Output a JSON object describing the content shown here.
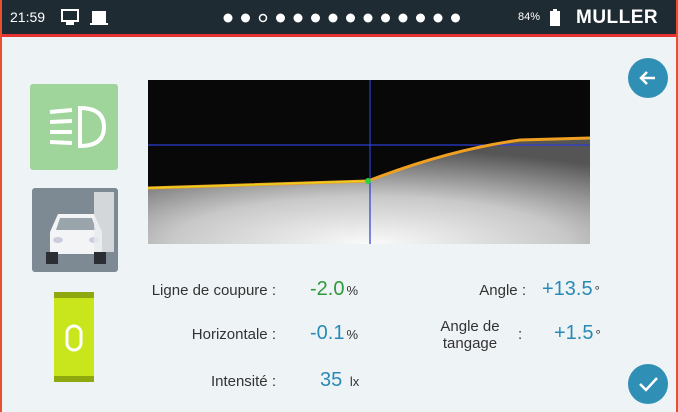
{
  "status_bar": {
    "time": "21:59",
    "battery": "84%",
    "brand": "MULLER"
  },
  "measurements": {
    "ligne_de_coupure": {
      "label": "Ligne de coupure",
      "separator": ":",
      "value": "-2.0",
      "unit": "%"
    },
    "horizontale": {
      "label": "Horizontale",
      "separator": ":",
      "value": "-0.1",
      "unit": "%"
    },
    "intensite": {
      "label": "Intensité",
      "separator": ":",
      "value": "35",
      "unit": "lx"
    },
    "angle": {
      "label": "Angle",
      "separator": ":",
      "value": "+13.5",
      "unit": "°"
    },
    "angle_tangage": {
      "label_lines": [
        "Angle de",
        "tangage"
      ],
      "separator": ":",
      "value": "+1.5",
      "unit": "°"
    }
  }
}
